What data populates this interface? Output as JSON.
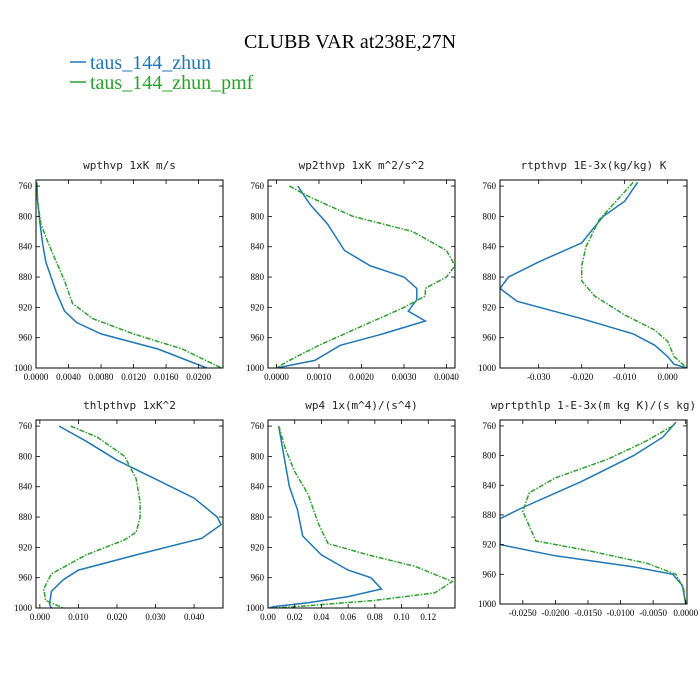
{
  "figure": {
    "title": "CLUBB VAR at238E,27N",
    "legend": [
      {
        "label": "taus_144_zhun",
        "color": "#1f77b4"
      },
      {
        "label": "taus_144_zhun_pmf",
        "color": "#2ca02c"
      }
    ]
  },
  "chart_data": [
    {
      "type": "line",
      "title": "wpthvp   1xK m/s",
      "xlim": [
        0,
        0.023
      ],
      "ylim": [
        1000,
        752
      ],
      "xticks": [
        0.0,
        0.004,
        0.008,
        0.012,
        0.016,
        0.02
      ],
      "xtick_labels": [
        "0.0000",
        "0.0040",
        "0.0080",
        "0.0120",
        "0.0160",
        "0.0200"
      ],
      "yticks": [
        760,
        800,
        840,
        880,
        920,
        960,
        1000
      ],
      "series": [
        {
          "name": "taus_144_zhun",
          "x": [
            0.0001,
            0.0002,
            0.0005,
            0.0008,
            0.0012,
            0.0025,
            0.0035,
            0.005,
            0.008,
            0.015,
            0.021
          ],
          "y": [
            755,
            780,
            810,
            835,
            860,
            900,
            925,
            940,
            955,
            975,
            1000
          ]
        },
        {
          "name": "taus_144_zhun_pmf",
          "x": [
            0.0001,
            0.0002,
            0.0006,
            0.0015,
            0.0025,
            0.0035,
            0.0045,
            0.007,
            0.012,
            0.018,
            0.0228
          ],
          "y": [
            755,
            780,
            810,
            835,
            860,
            885,
            915,
            935,
            955,
            975,
            1000
          ]
        }
      ]
    },
    {
      "type": "line",
      "title": "wp2thvp   1xK m^2/s^2",
      "xlim": [
        -0.0002,
        0.0042
      ],
      "ylim": [
        1000,
        752
      ],
      "xticks": [
        0.0,
        0.001,
        0.002,
        0.003,
        0.004
      ],
      "xtick_labels": [
        "0.0000",
        "0.0010",
        "0.0020",
        "0.0030",
        "0.0040"
      ],
      "yticks": [
        760,
        800,
        840,
        880,
        920,
        960,
        1000
      ],
      "series": [
        {
          "name": "taus_144_zhun",
          "x": [
            0.0005,
            0.0008,
            0.0012,
            0.0016,
            0.0022,
            0.003,
            0.0033,
            0.0033,
            0.0031,
            0.0035,
            0.0025,
            0.0015,
            0.0009,
            0.0
          ],
          "y": [
            760,
            785,
            810,
            845,
            865,
            880,
            895,
            910,
            925,
            938,
            955,
            970,
            990,
            1000
          ]
        },
        {
          "name": "taus_144_zhun_pmf",
          "x": [
            0.0003,
            0.0008,
            0.0018,
            0.0032,
            0.004,
            0.0042,
            0.004,
            0.0035,
            0.0035,
            0.003,
            0.002,
            0.001,
            0.0003,
            0.0
          ],
          "y": [
            760,
            775,
            800,
            820,
            845,
            865,
            880,
            895,
            905,
            920,
            945,
            970,
            990,
            1000
          ]
        }
      ]
    },
    {
      "type": "line",
      "title": "rtpthvp   1E-3x(kg/kg) K",
      "xlim": [
        -0.039,
        0.0045
      ],
      "ylim": [
        1000,
        752
      ],
      "xticks": [
        -0.03,
        -0.02,
        -0.01,
        0.0
      ],
      "xtick_labels": [
        "-0.030",
        "-0.020",
        "-0.010",
        "0.000"
      ],
      "yticks": [
        760,
        800,
        840,
        880,
        920,
        960,
        1000
      ],
      "series": [
        {
          "name": "taus_144_zhun",
          "x": [
            -0.007,
            -0.01,
            -0.015,
            -0.02,
            -0.03,
            -0.037,
            -0.039,
            -0.035,
            -0.02,
            -0.008,
            -0.003,
            0.0,
            0.0015,
            0.0045
          ],
          "y": [
            755,
            780,
            800,
            835,
            860,
            880,
            895,
            912,
            935,
            955,
            970,
            985,
            995,
            1000
          ]
        },
        {
          "name": "taus_144_zhun_pmf",
          "x": [
            -0.008,
            -0.012,
            -0.016,
            -0.019,
            -0.02,
            -0.02,
            -0.017,
            -0.01,
            -0.003,
            0.0,
            0.0015,
            0.0045
          ],
          "y": [
            755,
            780,
            805,
            840,
            865,
            885,
            905,
            930,
            950,
            965,
            985,
            1000
          ]
        }
      ]
    },
    {
      "type": "line",
      "title": "thlpthvp   1xK^2",
      "xlim": [
        -0.001,
        0.0475
      ],
      "ylim": [
        1000,
        752
      ],
      "xticks": [
        0.0,
        0.01,
        0.02,
        0.03,
        0.04
      ],
      "xtick_labels": [
        "0.000",
        "0.010",
        "0.020",
        "0.030",
        "0.040"
      ],
      "yticks": [
        760,
        800,
        840,
        880,
        920,
        960,
        1000
      ],
      "series": [
        {
          "name": "taus_144_zhun",
          "x": [
            0.005,
            0.012,
            0.02,
            0.03,
            0.04,
            0.046,
            0.047,
            0.042,
            0.025,
            0.01,
            0.006,
            0.003,
            0.0025,
            0.003
          ],
          "y": [
            760,
            780,
            805,
            830,
            855,
            880,
            890,
            908,
            930,
            950,
            963,
            978,
            995,
            1000
          ]
        },
        {
          "name": "taus_144_zhun_pmf",
          "x": [
            0.008,
            0.015,
            0.022,
            0.025,
            0.026,
            0.026,
            0.025,
            0.022,
            0.012,
            0.003,
            0.001,
            0.0015,
            0.006
          ],
          "y": [
            760,
            775,
            800,
            830,
            860,
            880,
            900,
            910,
            930,
            955,
            975,
            990,
            1000
          ]
        }
      ]
    },
    {
      "type": "line",
      "title": "wp4   1x(m^4)/(s^4)",
      "xlim": [
        0.0,
        0.14
      ],
      "ylim": [
        1000,
        752
      ],
      "xticks": [
        0.0,
        0.02,
        0.04,
        0.06,
        0.08,
        0.1,
        0.12
      ],
      "xtick_labels": [
        "0.00",
        "0.02",
        "0.04",
        "0.06",
        "0.08",
        "0.10",
        "0.12"
      ],
      "yticks": [
        760,
        800,
        840,
        880,
        920,
        960,
        1000
      ],
      "series": [
        {
          "name": "taus_144_zhun",
          "x": [
            0.008,
            0.012,
            0.016,
            0.022,
            0.026,
            0.04,
            0.06,
            0.077,
            0.085,
            0.06,
            0.03,
            0.005,
            0.001
          ],
          "y": [
            760,
            800,
            840,
            870,
            905,
            930,
            950,
            960,
            975,
            985,
            993,
            998,
            1000
          ]
        },
        {
          "name": "taus_144_zhun_pmf",
          "x": [
            0.008,
            0.013,
            0.02,
            0.03,
            0.034,
            0.038,
            0.045,
            0.075,
            0.11,
            0.138,
            0.125,
            0.08,
            0.03,
            0.005
          ],
          "y": [
            760,
            790,
            820,
            850,
            870,
            890,
            915,
            930,
            945,
            965,
            980,
            990,
            997,
            1000
          ]
        }
      ]
    },
    {
      "type": "line",
      "title": "wprtpthlp   1-E-3x(m kg K)/(s kg)",
      "xlim": [
        -0.0285,
        0.0002
      ],
      "ylim": [
        1000,
        752
      ],
      "xticks": [
        -0.025,
        -0.02,
        -0.015,
        -0.01,
        -0.005,
        0.0
      ],
      "xtick_labels": [
        "-0.0250",
        "-0.0200",
        "-0.0150",
        "-0.0100",
        "-0.0050",
        "0.0000"
      ],
      "yticks": [
        760,
        800,
        840,
        880,
        920,
        960,
        1000
      ],
      "series": [
        {
          "name": "taus_144_zhun",
          "x": [
            -0.0015,
            -0.0035,
            -0.008,
            -0.016,
            -0.025,
            -0.0285,
            -0.0285,
            -0.02,
            -0.008,
            -0.002,
            -0.0005,
            0.0
          ],
          "y": [
            755,
            775,
            800,
            835,
            870,
            885,
            920,
            935,
            950,
            960,
            975,
            1000
          ]
        },
        {
          "name": "taus_144_zhun_pmf",
          "x": [
            -0.002,
            -0.006,
            -0.012,
            -0.02,
            -0.024,
            -0.025,
            -0.023,
            -0.015,
            -0.006,
            -0.0015,
            -0.0003,
            0.0
          ],
          "y": [
            760,
            780,
            805,
            830,
            850,
            875,
            915,
            928,
            945,
            960,
            980,
            1000
          ]
        }
      ]
    }
  ]
}
